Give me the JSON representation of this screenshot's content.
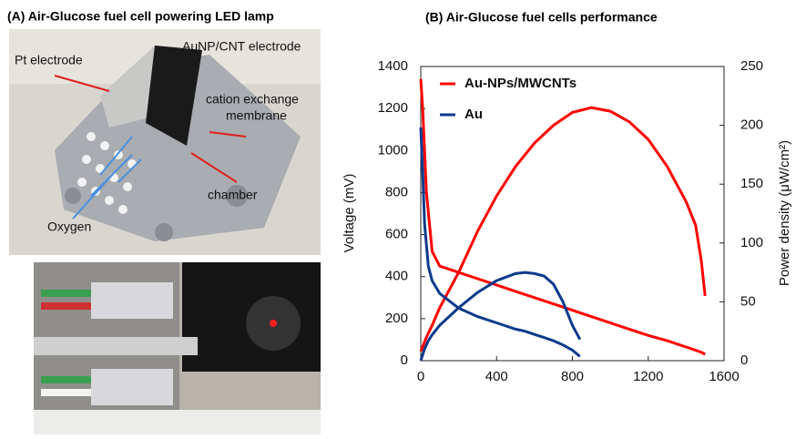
{
  "panel_a": {
    "title": "(A) Air-Glucose fuel  cell powering LED lamp",
    "labels": {
      "cnt": "AuNP/CNT  electrode",
      "pt": "Pt electrode",
      "membrane": [
        "cation exchange",
        "membrane"
      ],
      "chamber": "chamber",
      "oxygen": "Oxygen"
    }
  },
  "chart_data": {
    "type": "line",
    "title": "(B) Air-Glucose fuel cells performance",
    "y_label": "Voltage (mV)",
    "y2_label": "Power density (μW/cm²)",
    "xlim": [
      0,
      1600
    ],
    "xticks": [
      0,
      400,
      800,
      1200,
      1600
    ],
    "ylim": [
      0,
      1400
    ],
    "yticks": [
      0,
      200,
      400,
      600,
      800,
      1000,
      1200,
      1400
    ],
    "y2lim": [
      0,
      250
    ],
    "y2ticks": [
      0,
      50,
      100,
      150,
      200,
      250
    ],
    "series": [
      {
        "name": "Au-NPs/MWCNTs",
        "color": "#ff0000",
        "x": [
          0,
          10,
          30,
          60,
          100,
          200,
          300,
          400,
          500,
          600,
          700,
          800,
          900,
          1000,
          1100,
          1200,
          1300,
          1400,
          1450,
          1480,
          1500
        ],
        "values": [
          1340,
          1200,
          800,
          520,
          450,
          420,
          390,
          360,
          330,
          300,
          270,
          240,
          210,
          180,
          150,
          120,
          95,
          65,
          50,
          40,
          30
        ],
        "y2_values": [
          8,
          12,
          20,
          30,
          45,
          75,
          110,
          140,
          165,
          185,
          200,
          211,
          215,
          212,
          203,
          188,
          165,
          135,
          115,
          85,
          55
        ]
      },
      {
        "name": "Au",
        "color": "#0b3a8c",
        "x": [
          0,
          10,
          20,
          40,
          60,
          100,
          200,
          300,
          400,
          500,
          550,
          600,
          650,
          700,
          750,
          800,
          840
        ],
        "values": [
          1110,
          900,
          650,
          450,
          380,
          320,
          250,
          210,
          180,
          150,
          140,
          125,
          110,
          95,
          75,
          50,
          20
        ],
        "y2_values": [
          0,
          5,
          10,
          17,
          22,
          30,
          45,
          58,
          68,
          74,
          75,
          74,
          72,
          65,
          50,
          30,
          18
        ]
      }
    ]
  }
}
